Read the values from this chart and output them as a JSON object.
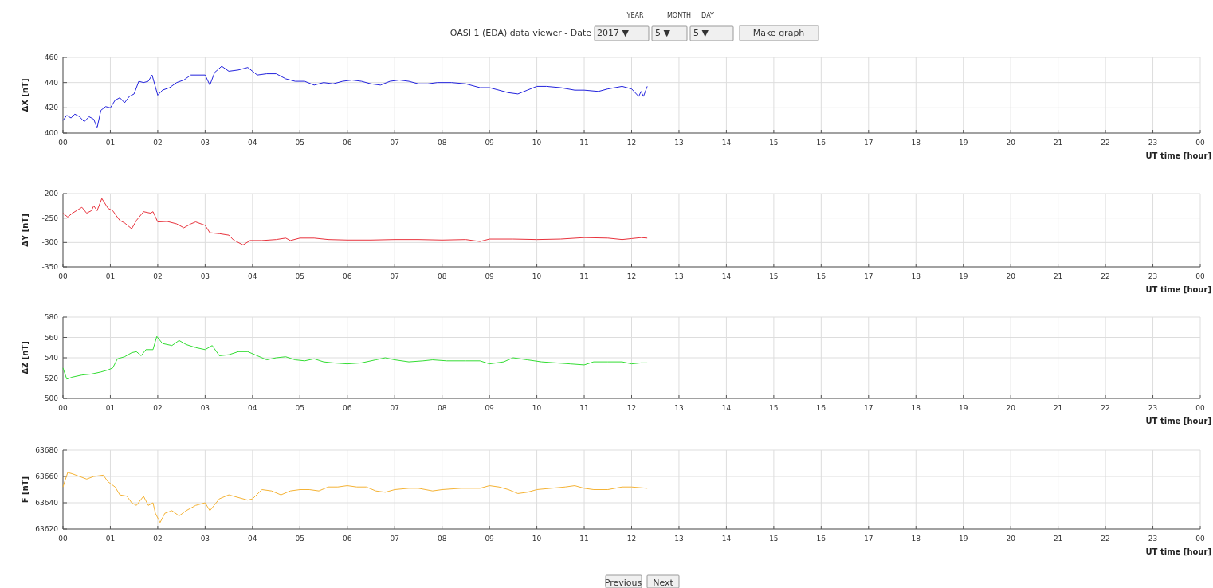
{
  "chart_data": [
    {
      "type": "line",
      "ylabel": "ΔX [nT]",
      "xlabel": "UT time [hour]",
      "xlim": [
        0,
        24
      ],
      "ylim": [
        400,
        460
      ],
      "yticks": [
        400,
        420,
        440,
        460
      ],
      "xticks": [
        {
          "value": 0,
          "label": "00"
        },
        {
          "value": 1,
          "label": "01"
        },
        {
          "value": 2,
          "label": "02"
        },
        {
          "value": 3,
          "label": "03"
        },
        {
          "value": 4,
          "label": "04"
        },
        {
          "value": 5,
          "label": "05"
        },
        {
          "value": 6,
          "label": "06"
        },
        {
          "value": 7,
          "label": "07"
        },
        {
          "value": 8,
          "label": "08"
        },
        {
          "value": 9,
          "label": "09"
        },
        {
          "value": 10,
          "label": "10"
        },
        {
          "value": 11,
          "label": "11"
        },
        {
          "value": 12,
          "label": "12"
        },
        {
          "value": 13,
          "label": "13"
        },
        {
          "value": 14,
          "label": "14"
        },
        {
          "value": 15,
          "label": "15"
        },
        {
          "value": 16,
          "label": "16"
        },
        {
          "value": 17,
          "label": "17"
        },
        {
          "value": 18,
          "label": "18"
        },
        {
          "value": 19,
          "label": "19"
        },
        {
          "value": 20,
          "label": "20"
        },
        {
          "value": 21,
          "label": "21"
        },
        {
          "value": 22,
          "label": "22"
        },
        {
          "value": 23,
          "label": "23"
        },
        {
          "value": 24,
          "label": "00"
        }
      ],
      "grid": true,
      "marker": "none",
      "annotations": [
        "OASI 1 (EDA) data viewer -  Date",
        "YEAR",
        "MONTH",
        "DAY",
        "2017 ▼",
        "5 ▼",
        "5 ▼",
        "Make graph"
      ],
      "series": [
        {
          "color": "#2222dd",
          "x": [
            0,
            0.08,
            0.17,
            0.25,
            0.35,
            0.45,
            0.55,
            0.65,
            0.72,
            0.8,
            0.9,
            1.0,
            1.1,
            1.2,
            1.3,
            1.4,
            1.5,
            1.6,
            1.7,
            1.8,
            1.88,
            2.0,
            2.1,
            2.25,
            2.4,
            2.55,
            2.7,
            2.85,
            3.0,
            3.1,
            3.2,
            3.35,
            3.5,
            3.7,
            3.9,
            4.1,
            4.3,
            4.5,
            4.7,
            4.9,
            5.1,
            5.3,
            5.5,
            5.7,
            5.9,
            6.1,
            6.3,
            6.5,
            6.7,
            6.9,
            7.1,
            7.3,
            7.5,
            7.7,
            7.9,
            8.2,
            8.5,
            8.8,
            9.0,
            9.2,
            9.4,
            9.6,
            9.8,
            10.0,
            10.2,
            10.5,
            10.8,
            11.0,
            11.3,
            11.5,
            11.8,
            12.0,
            12.15,
            12.2,
            12.25,
            12.33
          ],
          "values": [
            410,
            414,
            412,
            415,
            413,
            409,
            413,
            411,
            404,
            418,
            421,
            420,
            426,
            428,
            424,
            429,
            431,
            441,
            440,
            441,
            446,
            430,
            434,
            436,
            440,
            442,
            446,
            446,
            446,
            438,
            448,
            453,
            449,
            450,
            452,
            446,
            447,
            447,
            443,
            441,
            441,
            438,
            440,
            439,
            441,
            442,
            441,
            439,
            438,
            441,
            442,
            441,
            439,
            439,
            440,
            440,
            439,
            436,
            436,
            434,
            432,
            431,
            434,
            437,
            437,
            436,
            434,
            434,
            433,
            435,
            437,
            435,
            429,
            433,
            429,
            437
          ]
        }
      ]
    },
    {
      "type": "line",
      "ylabel": "ΔY [nT]",
      "xlabel": "UT time [hour]",
      "xlim": [
        0,
        24
      ],
      "ylim": [
        -350,
        -200
      ],
      "yticks": [
        -350,
        -300,
        -250,
        -200
      ],
      "xticks": [
        {
          "value": 0,
          "label": "00"
        },
        {
          "value": 1,
          "label": "01"
        },
        {
          "value": 2,
          "label": "02"
        },
        {
          "value": 3,
          "label": "03"
        },
        {
          "value": 4,
          "label": "04"
        },
        {
          "value": 5,
          "label": "05"
        },
        {
          "value": 6,
          "label": "06"
        },
        {
          "value": 7,
          "label": "07"
        },
        {
          "value": 8,
          "label": "08"
        },
        {
          "value": 9,
          "label": "09"
        },
        {
          "value": 10,
          "label": "10"
        },
        {
          "value": 11,
          "label": "11"
        },
        {
          "value": 12,
          "label": "12"
        },
        {
          "value": 13,
          "label": "13"
        },
        {
          "value": 14,
          "label": "14"
        },
        {
          "value": 15,
          "label": "15"
        },
        {
          "value": 16,
          "label": "16"
        },
        {
          "value": 17,
          "label": "17"
        },
        {
          "value": 18,
          "label": "18"
        },
        {
          "value": 19,
          "label": "19"
        },
        {
          "value": 20,
          "label": "20"
        },
        {
          "value": 21,
          "label": "21"
        },
        {
          "value": 22,
          "label": "22"
        },
        {
          "value": 23,
          "label": "23"
        },
        {
          "value": 24,
          "label": "00"
        }
      ],
      "grid": true,
      "marker": "none",
      "series": [
        {
          "color": "#e8323c",
          "x": [
            0,
            0.1,
            0.2,
            0.4,
            0.5,
            0.6,
            0.65,
            0.72,
            0.82,
            0.95,
            1.05,
            1.2,
            1.3,
            1.45,
            1.55,
            1.7,
            1.85,
            1.9,
            2.0,
            2.2,
            2.4,
            2.55,
            2.7,
            2.8,
            3.0,
            3.1,
            3.3,
            3.5,
            3.6,
            3.8,
            3.95,
            4.2,
            4.5,
            4.7,
            4.8,
            5.0,
            5.3,
            5.6,
            6.0,
            6.5,
            7.0,
            7.5,
            8.0,
            8.5,
            8.8,
            9.0,
            9.5,
            10.0,
            10.5,
            11.0,
            11.5,
            11.8,
            12.0,
            12.2,
            12.33
          ],
          "values": [
            -240,
            -248,
            -240,
            -228,
            -240,
            -235,
            -225,
            -235,
            -210,
            -230,
            -235,
            -255,
            -260,
            -272,
            -255,
            -237,
            -240,
            -237,
            -258,
            -257,
            -262,
            -270,
            -262,
            -258,
            -265,
            -280,
            -282,
            -285,
            -295,
            -305,
            -296,
            -296,
            -294,
            -291,
            -296,
            -291,
            -291,
            -294,
            -295,
            -295,
            -294,
            -294,
            -295,
            -294,
            -298,
            -293,
            -293,
            -294,
            -293,
            -290,
            -291,
            -294,
            -292,
            -290,
            -291
          ]
        }
      ]
    },
    {
      "type": "line",
      "ylabel": "ΔZ [nT]",
      "xlabel": "UT time [hour]",
      "xlim": [
        0,
        24
      ],
      "ylim": [
        500,
        580
      ],
      "yticks": [
        500,
        520,
        540,
        560,
        580
      ],
      "xticks": [
        {
          "value": 0,
          "label": "00"
        },
        {
          "value": 1,
          "label": "01"
        },
        {
          "value": 2,
          "label": "02"
        },
        {
          "value": 3,
          "label": "03"
        },
        {
          "value": 4,
          "label": "04"
        },
        {
          "value": 5,
          "label": "05"
        },
        {
          "value": 6,
          "label": "06"
        },
        {
          "value": 7,
          "label": "07"
        },
        {
          "value": 8,
          "label": "08"
        },
        {
          "value": 9,
          "label": "09"
        },
        {
          "value": 10,
          "label": "10"
        },
        {
          "value": 11,
          "label": "11"
        },
        {
          "value": 12,
          "label": "12"
        },
        {
          "value": 13,
          "label": "13"
        },
        {
          "value": 14,
          "label": "14"
        },
        {
          "value": 15,
          "label": "15"
        },
        {
          "value": 16,
          "label": "16"
        },
        {
          "value": 17,
          "label": "17"
        },
        {
          "value": 18,
          "label": "18"
        },
        {
          "value": 19,
          "label": "19"
        },
        {
          "value": 20,
          "label": "20"
        },
        {
          "value": 21,
          "label": "21"
        },
        {
          "value": 22,
          "label": "22"
        },
        {
          "value": 23,
          "label": "23"
        },
        {
          "value": 24,
          "label": "00"
        }
      ],
      "grid": true,
      "marker": "none",
      "series": [
        {
          "color": "#33dd33",
          "x": [
            0,
            0.08,
            0.2,
            0.4,
            0.6,
            0.8,
            0.95,
            1.05,
            1.15,
            1.3,
            1.45,
            1.55,
            1.65,
            1.75,
            1.9,
            1.98,
            2.1,
            2.3,
            2.45,
            2.6,
            2.8,
            3.0,
            3.15,
            3.3,
            3.5,
            3.7,
            3.9,
            4.1,
            4.3,
            4.5,
            4.7,
            4.9,
            5.1,
            5.3,
            5.5,
            5.7,
            6.0,
            6.3,
            6.6,
            6.8,
            7.0,
            7.3,
            7.6,
            7.8,
            8.1,
            8.5,
            8.8,
            9.0,
            9.3,
            9.5,
            9.8,
            10.1,
            10.4,
            10.7,
            11.0,
            11.2,
            11.5,
            11.8,
            12.0,
            12.2,
            12.33
          ],
          "values": [
            530,
            519,
            521,
            523,
            524,
            526,
            528,
            530,
            539,
            541,
            545,
            546,
            542,
            548,
            548,
            561,
            554,
            552,
            557,
            553,
            550,
            548,
            552,
            542,
            543,
            546,
            546,
            542,
            538,
            540,
            541,
            538,
            537,
            539,
            536,
            535,
            534,
            535,
            538,
            540,
            538,
            536,
            537,
            538,
            537,
            537,
            537,
            534,
            536,
            540,
            538,
            536,
            535,
            534,
            533,
            536,
            536,
            536,
            534,
            535,
            535
          ]
        }
      ]
    },
    {
      "type": "line",
      "ylabel": "F [nT]",
      "xlabel": "UT time [hour]",
      "xlim": [
        0,
        24
      ],
      "ylim": [
        63620,
        63680
      ],
      "yticks": [
        63620,
        63640,
        63660,
        63680
      ],
      "xticks": [
        {
          "value": 0,
          "label": "00"
        },
        {
          "value": 1,
          "label": "01"
        },
        {
          "value": 2,
          "label": "02"
        },
        {
          "value": 3,
          "label": "03"
        },
        {
          "value": 4,
          "label": "04"
        },
        {
          "value": 5,
          "label": "05"
        },
        {
          "value": 6,
          "label": "06"
        },
        {
          "value": 7,
          "label": "07"
        },
        {
          "value": 8,
          "label": "08"
        },
        {
          "value": 9,
          "label": "09"
        },
        {
          "value": 10,
          "label": "10"
        },
        {
          "value": 11,
          "label": "11"
        },
        {
          "value": 12,
          "label": "12"
        },
        {
          "value": 13,
          "label": "13"
        },
        {
          "value": 14,
          "label": "14"
        },
        {
          "value": 15,
          "label": "15"
        },
        {
          "value": 16,
          "label": "16"
        },
        {
          "value": 17,
          "label": "17"
        },
        {
          "value": 18,
          "label": "18"
        },
        {
          "value": 19,
          "label": "19"
        },
        {
          "value": 20,
          "label": "20"
        },
        {
          "value": 21,
          "label": "21"
        },
        {
          "value": 22,
          "label": "22"
        },
        {
          "value": 23,
          "label": "23"
        },
        {
          "value": 24,
          "label": "00"
        }
      ],
      "grid": true,
      "marker": "none",
      "annotations": [
        "Previous",
        "Next"
      ],
      "series": [
        {
          "color": "#f5b335",
          "x": [
            0,
            0.1,
            0.2,
            0.35,
            0.5,
            0.65,
            0.85,
            0.95,
            1.1,
            1.2,
            1.35,
            1.45,
            1.55,
            1.7,
            1.8,
            1.9,
            1.95,
            2.05,
            2.15,
            2.3,
            2.45,
            2.6,
            2.8,
            3.0,
            3.1,
            3.3,
            3.5,
            3.7,
            3.9,
            4.0,
            4.2,
            4.4,
            4.6,
            4.8,
            5.0,
            5.2,
            5.4,
            5.6,
            5.8,
            6.0,
            6.2,
            6.4,
            6.6,
            6.8,
            7.0,
            7.3,
            7.5,
            7.8,
            8.0,
            8.4,
            8.8,
            9.0,
            9.2,
            9.4,
            9.6,
            9.8,
            10.0,
            10.3,
            10.6,
            10.8,
            11.0,
            11.2,
            11.5,
            11.8,
            12.0,
            12.33
          ],
          "values": [
            63652,
            63663,
            63662,
            63660,
            63658,
            63660,
            63661,
            63656,
            63652,
            63646,
            63645,
            63640,
            63638,
            63645,
            63638,
            63640,
            63632,
            63625,
            63632,
            63634,
            63630,
            63634,
            63638,
            63640,
            63634,
            63643,
            63646,
            63644,
            63642,
            63643,
            63650,
            63649,
            63646,
            63649,
            63650,
            63650,
            63649,
            63652,
            63652,
            63653,
            63652,
            63652,
            63649,
            63648,
            63650,
            63651,
            63651,
            63649,
            63650,
            63651,
            63651,
            63653,
            63652,
            63650,
            63647,
            63648,
            63650,
            63651,
            63652,
            63653,
            63651,
            63650,
            63650,
            63652,
            63652,
            63651
          ]
        }
      ]
    }
  ]
}
